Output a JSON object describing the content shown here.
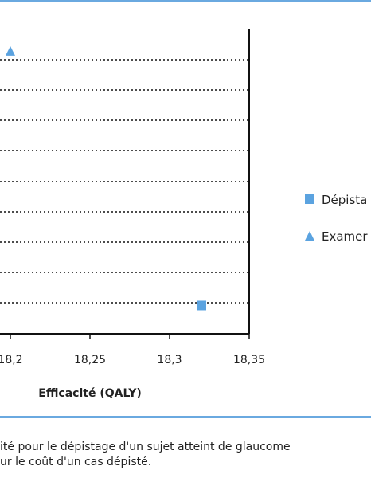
{
  "chart_data": {
    "type": "scatter",
    "title": "",
    "xlabel": "Efficacité (QALY)",
    "ylabel": "",
    "xlim": [
      18.2,
      18.35
    ],
    "x_ticks": [
      "18,2",
      "18,25",
      "18,3",
      "18,35"
    ],
    "grid": "horizontal dotted",
    "legend_placement": "right",
    "series": [
      {
        "name": "Dépista",
        "marker": "square",
        "color": "#5ba3e0",
        "x": 18.32,
        "y_level": 0.093
      },
      {
        "name": "Examer",
        "marker": "triangle",
        "color": "#5ba3e0",
        "x": 18.2,
        "y_level": 0.927
      }
    ]
  },
  "caption": {
    "line1": "ité pour le dépistage d'un sujet atteint de glaucome",
    "line2": "ur le coût d'un cas dépisté."
  }
}
